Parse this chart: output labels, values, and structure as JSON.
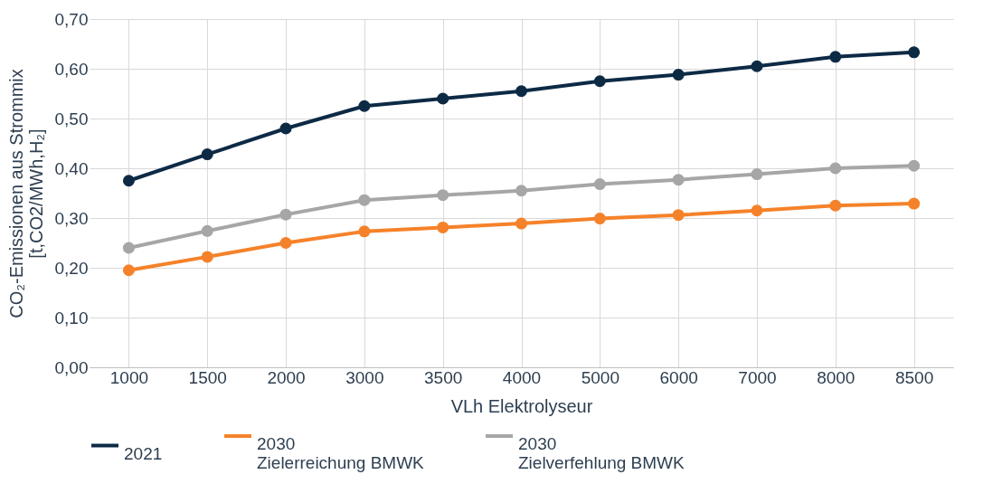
{
  "chart_data": {
    "type": "line",
    "xlabel": "VLh Elektrolyseur",
    "ylabel": "CO₂-Emissionen aus Strommix\n[t,CO2/MWh,H₂]",
    "categories": [
      "1000",
      "1500",
      "2000",
      "3000",
      "3500",
      "4000",
      "5000",
      "6000",
      "7000",
      "8000",
      "8500"
    ],
    "series": [
      {
        "name": "2021",
        "color": "#0d2a45",
        "values": [
          0.375,
          0.428,
          0.48,
          0.525,
          0.54,
          0.555,
          0.575,
          0.588,
          0.605,
          0.624,
          0.633
        ]
      },
      {
        "name": "2030\nZielerreichung BMWK",
        "color": "#f5822a",
        "values": [
          0.195,
          0.222,
          0.25,
          0.273,
          0.281,
          0.289,
          0.299,
          0.306,
          0.315,
          0.325,
          0.329
        ]
      },
      {
        "name": "2030\nZielverfehlung BMWK",
        "color": "#a6a6a6",
        "values": [
          0.24,
          0.274,
          0.307,
          0.336,
          0.346,
          0.355,
          0.368,
          0.377,
          0.388,
          0.4,
          0.405
        ]
      }
    ],
    "ylim": [
      0,
      0.7
    ],
    "yticks": [
      {
        "value": 0,
        "label": "0,00"
      },
      {
        "value": 0.1,
        "label": "0,10"
      },
      {
        "value": 0.2,
        "label": "0,20"
      },
      {
        "value": 0.3,
        "label": "0,30"
      },
      {
        "value": 0.4,
        "label": "0,40"
      },
      {
        "value": 0.5,
        "label": "0,50"
      },
      {
        "value": 0.6,
        "label": "0,60"
      },
      {
        "value": 0.7,
        "label": "0,70"
      }
    ],
    "grid": true,
    "legend": "bottom",
    "marker": "circle",
    "line_style": "solid"
  }
}
